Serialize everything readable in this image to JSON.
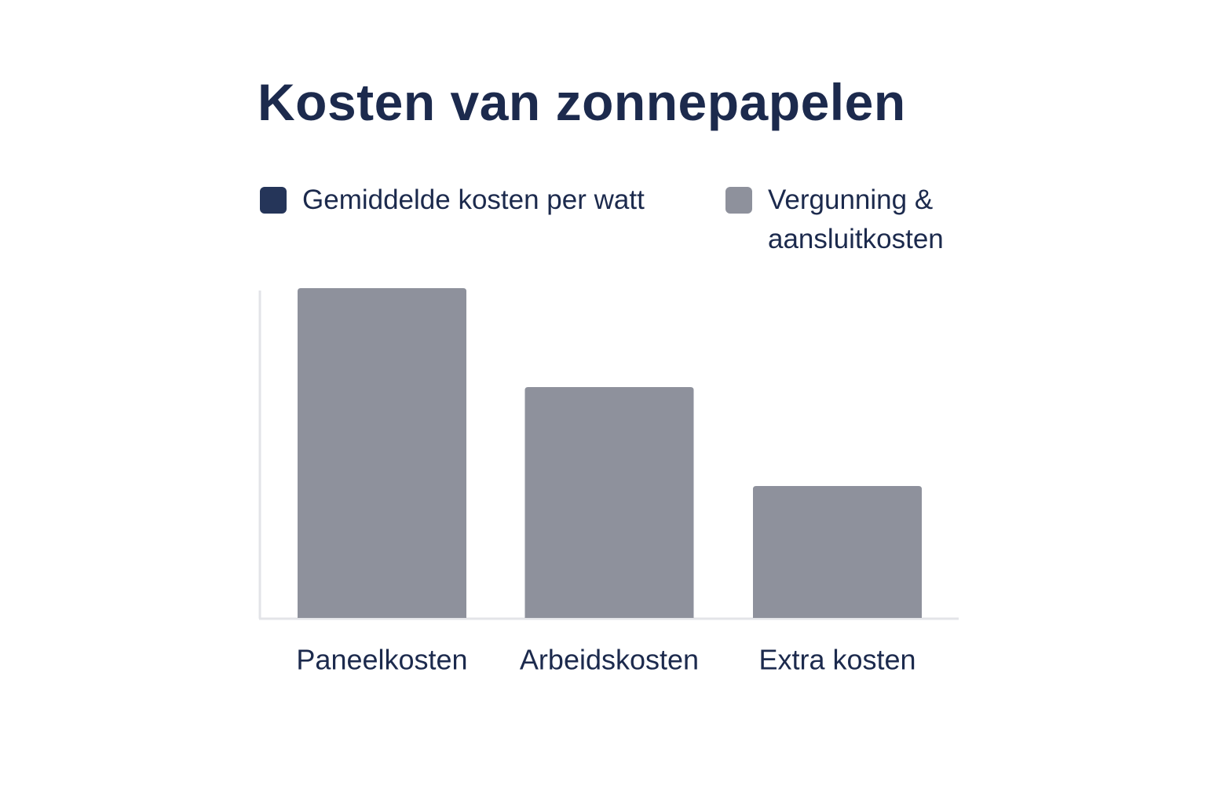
{
  "chart_data": {
    "type": "bar",
    "title": "Kosten van zonnepapelen",
    "categories": [
      "Paneelkosten",
      "Arbeidskosten",
      "Extra kosten"
    ],
    "series": [
      {
        "name": "Gemiddelde kosten per watt",
        "color": "#253559",
        "values": [
          null,
          null,
          null
        ]
      },
      {
        "name": "Vergunning & aansluitkosten",
        "color": "#8e919c",
        "values": [
          10,
          7,
          4
        ]
      }
    ],
    "ylim": [
      0,
      10
    ]
  }
}
